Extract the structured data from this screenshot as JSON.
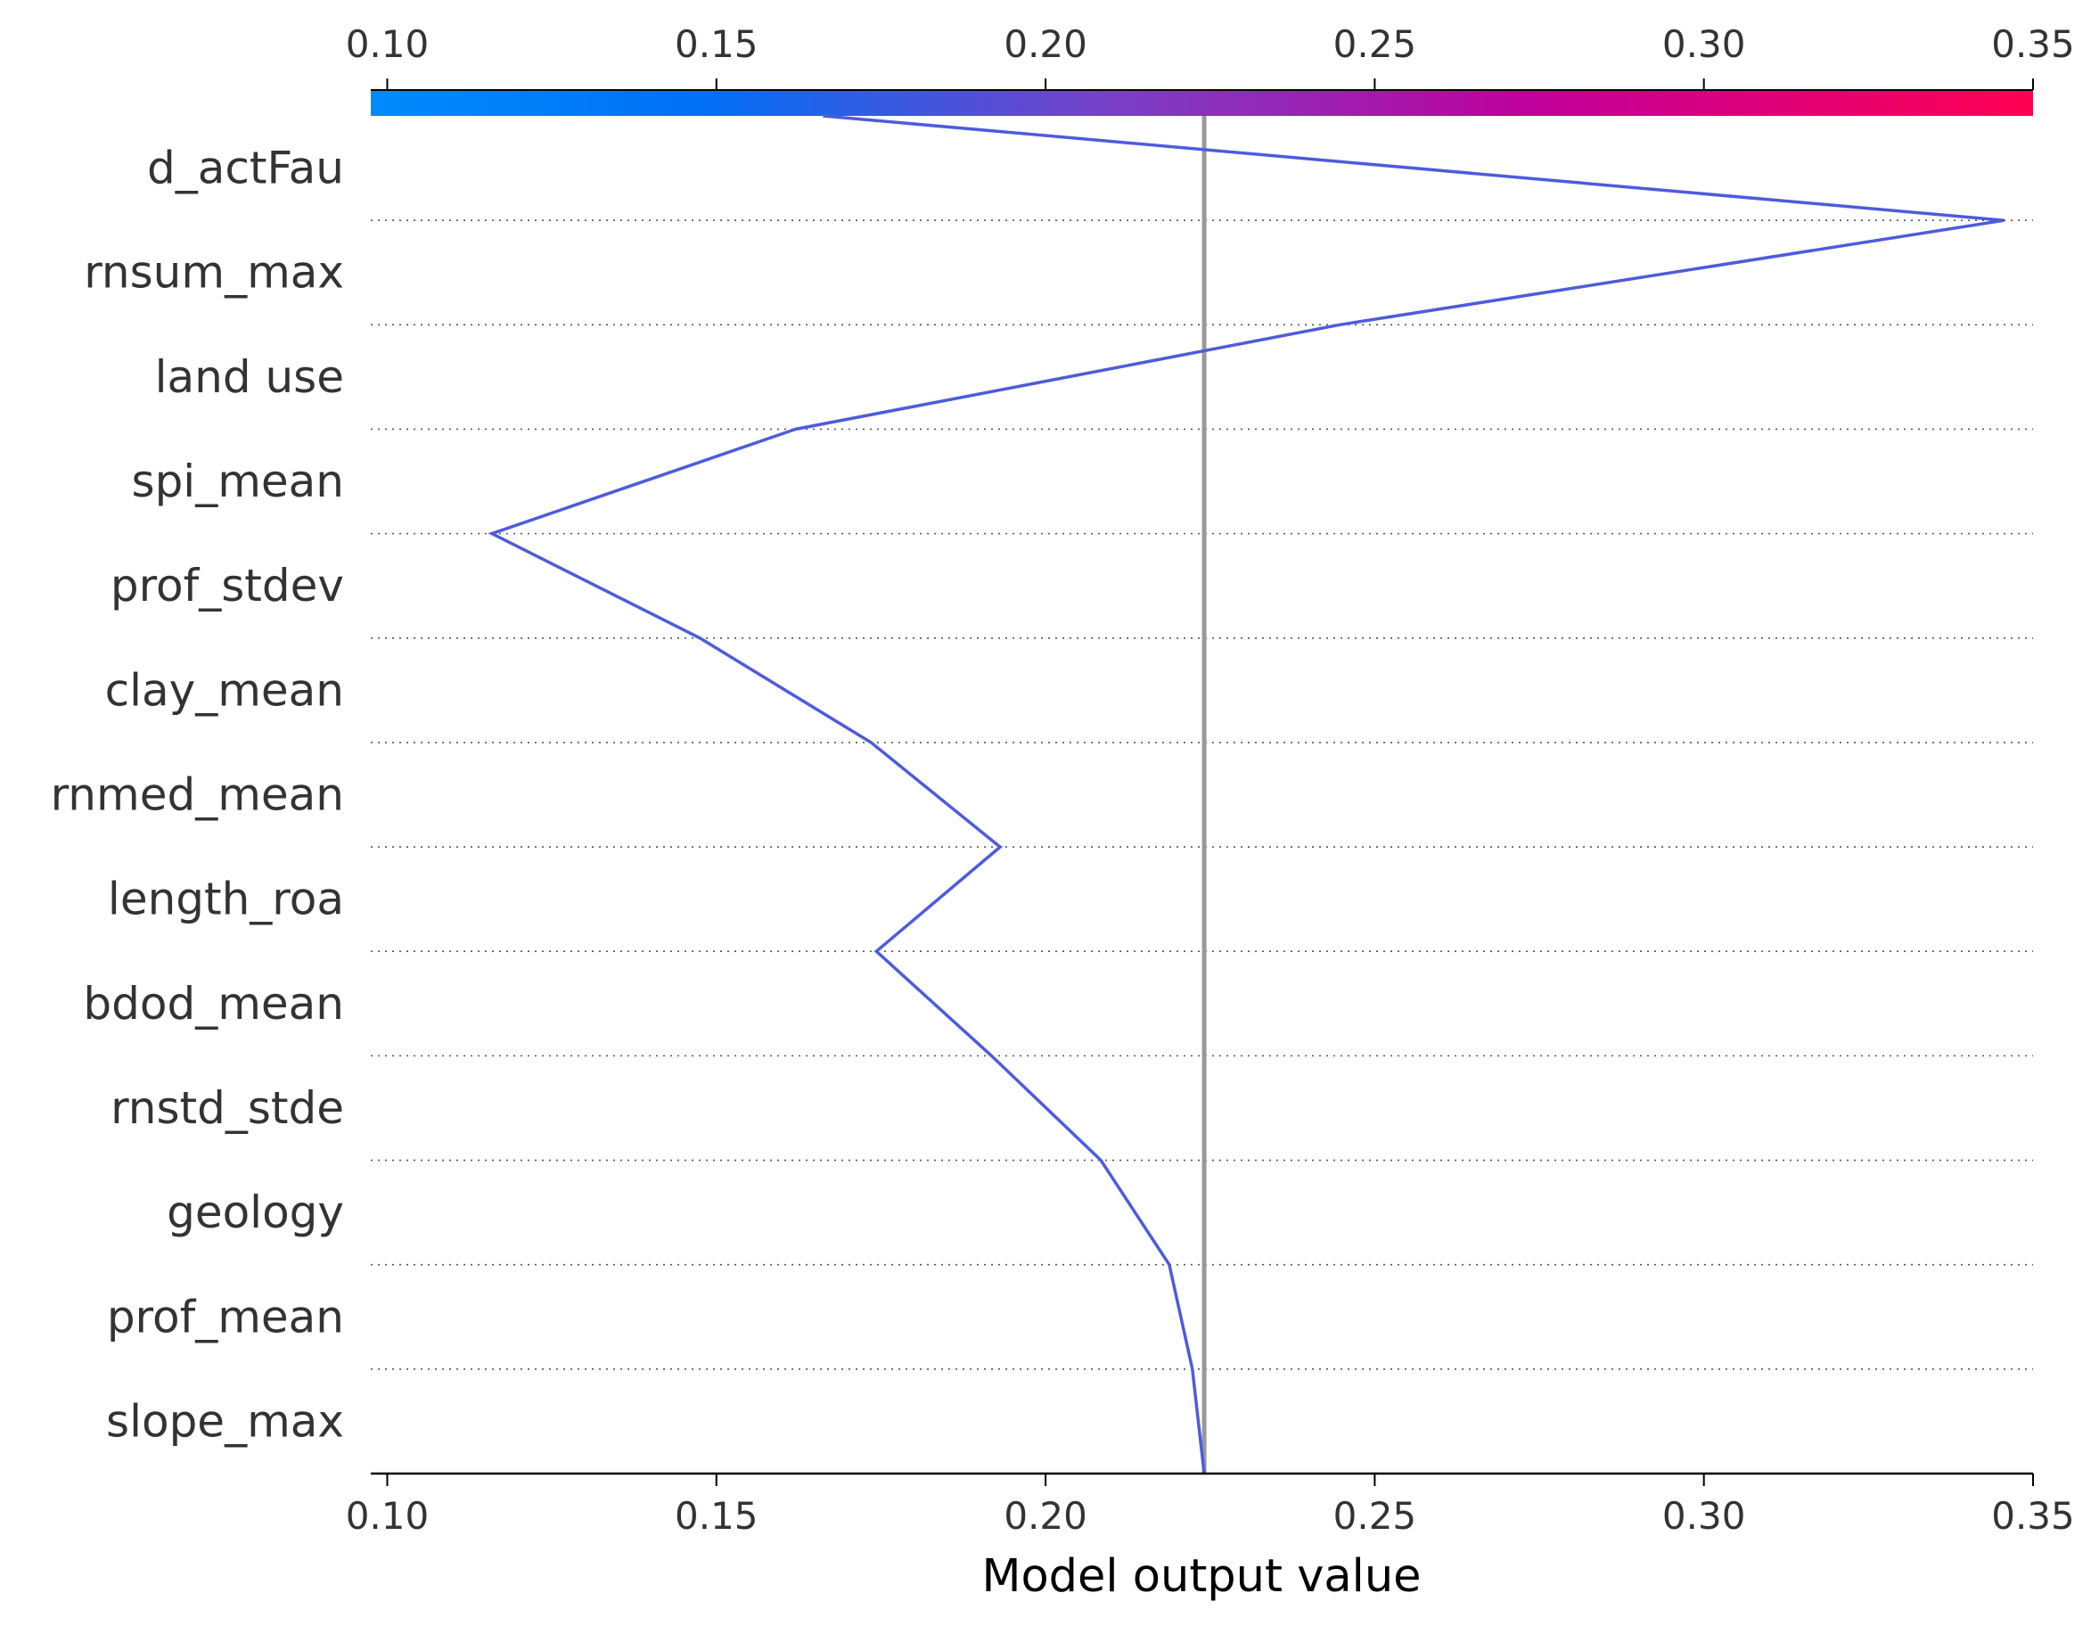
{
  "chart_data": {
    "type": "line",
    "chart_kind": "shap-decision-plot",
    "xlabel": "Model output value",
    "xlim": [
      0.0975,
      0.35
    ],
    "x_ticks": [
      "0.10",
      "0.15",
      "0.20",
      "0.25",
      "0.30",
      "0.35"
    ],
    "x_tick_values": [
      0.1,
      0.15,
      0.2,
      0.25,
      0.3,
      0.35
    ],
    "features": [
      "d_actFau",
      "rnsum_max",
      "land use",
      "spi_mean",
      "prof_stdev",
      "clay_mean",
      "rnmed_mean",
      "length_roa",
      "bdod_mean",
      "rnstd_stde",
      "geology",
      "prof_mean",
      "slope_max"
    ],
    "base_value": 0.2241,
    "path_values": [
      0.1662,
      0.3456,
      0.2447,
      0.162,
      0.1159,
      0.1475,
      0.1735,
      0.1931,
      0.1743,
      0.1918,
      0.2084,
      0.2188,
      0.2223,
      0.2241
    ],
    "colorbar": {
      "range": [
        0.0975,
        0.35
      ],
      "colors": [
        "#008bfb",
        "#ff0052"
      ]
    },
    "line_color": "#4e5bdc",
    "base_line_color": "#999999",
    "grid": "dotted-horizontal"
  }
}
